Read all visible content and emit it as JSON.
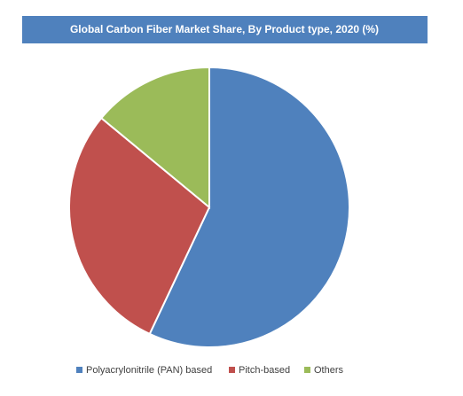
{
  "chart_data": {
    "type": "pie",
    "title": "Global Carbon Fiber Market Share, By Product type, 2020 (%)",
    "categories": [
      "Polyacrylonitrile (PAN) based",
      "Pitch-based",
      "Others"
    ],
    "values": [
      57,
      29,
      14
    ],
    "colors": [
      "#4f81bd",
      "#c0504d",
      "#9bbb59"
    ],
    "legend": "bottom"
  }
}
